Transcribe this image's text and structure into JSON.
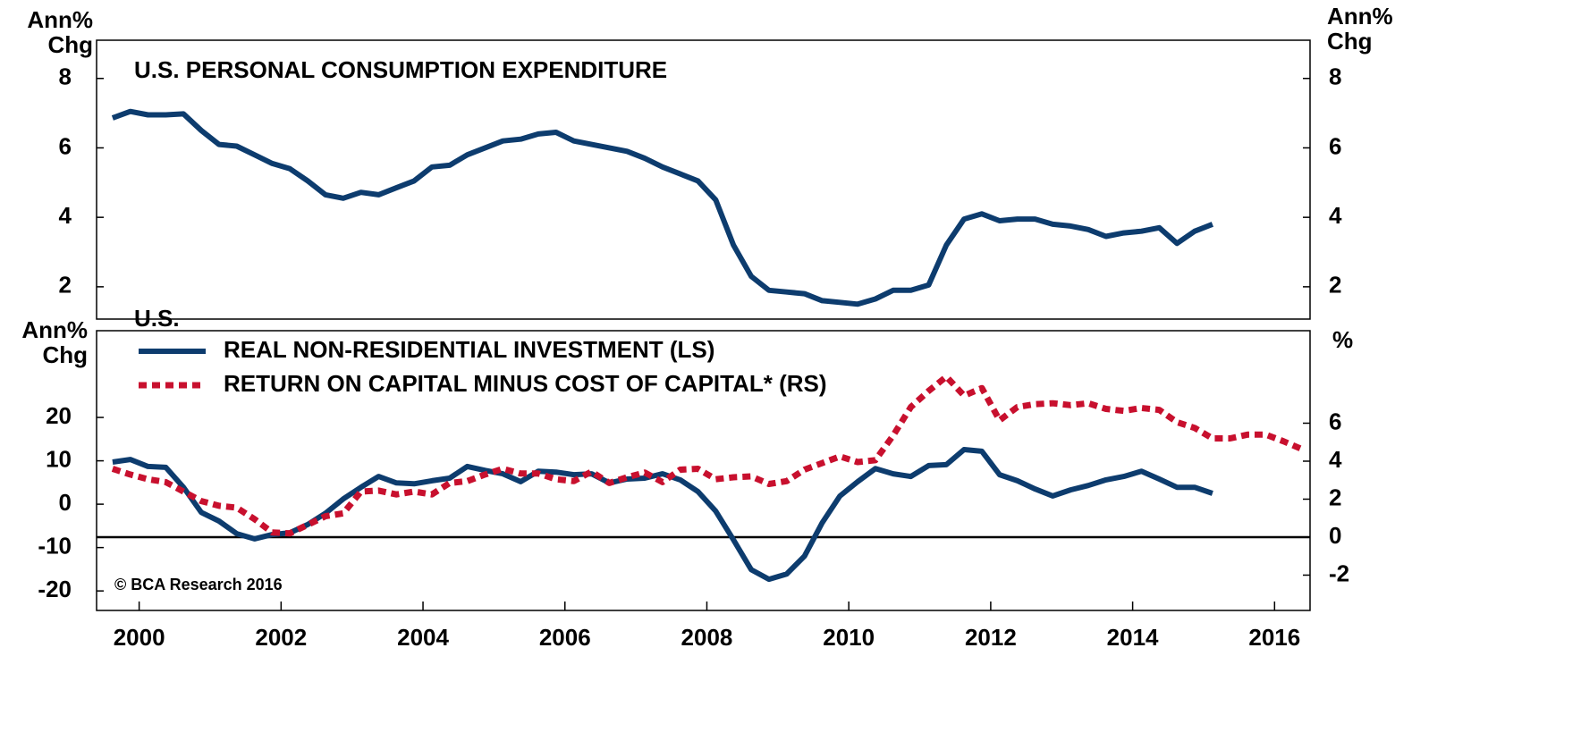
{
  "chart_data": [
    {
      "type": "line",
      "title": "U.S. PERSONAL CONSUMPTION EXPENDITURE",
      "ylabel": "Ann% Chg",
      "y2label": "Ann% Chg",
      "xlim": [
        1999.4,
        2016.5
      ],
      "ylim": [
        1.07,
        9.1
      ],
      "yticks": [
        2,
        4,
        6,
        8
      ],
      "y2lim": [
        1.07,
        9.1
      ],
      "y2ticks": [
        2,
        4,
        6,
        8
      ],
      "series": [
        {
          "name": "U.S. PERSONAL CONSUMPTION EXPENDITURE",
          "color": "#0d3c6e",
          "style": "solid",
          "x": [
            1999.625,
            1999.875,
            2000.125,
            2000.375,
            2000.625,
            2000.875,
            2001.125,
            2001.375,
            2001.625,
            2001.875,
            2002.125,
            2002.375,
            2002.625,
            2002.875,
            2003.125,
            2003.375,
            2003.625,
            2003.875,
            2004.125,
            2004.375,
            2004.625,
            2004.875,
            2005.125,
            2005.375,
            2005.625,
            2005.875,
            2006.125,
            2006.375,
            2006.625,
            2006.875,
            2007.125,
            2007.375,
            2007.625,
            2007.875,
            2008.125,
            2008.375,
            2008.625,
            2008.875,
            2009.125,
            2009.375,
            2009.625,
            2009.875,
            2010.125,
            2010.375,
            2010.625,
            2010.875,
            2011.125,
            2011.375,
            2011.625,
            2011.875,
            2012.125,
            2012.375,
            2012.625,
            2012.875,
            2013.125,
            2013.375,
            2013.625,
            2013.875,
            2014.125,
            2014.375,
            2014.625,
            2014.875,
            2015.125
          ],
          "values": [
            6.86,
            7.05,
            6.95,
            6.95,
            6.98,
            6.5,
            6.1,
            6.05,
            5.8,
            5.55,
            5.4,
            5.05,
            4.65,
            4.55,
            4.72,
            4.65,
            4.85,
            5.05,
            5.45,
            5.5,
            5.8,
            6.0,
            6.2,
            6.25,
            6.4,
            6.45,
            6.2,
            6.1,
            6.0,
            5.9,
            5.7,
            5.45,
            5.25,
            5.05,
            4.5,
            3.2,
            2.3,
            1.9,
            1.85,
            1.8,
            1.6,
            1.55,
            1.5,
            1.65,
            1.9,
            1.9,
            2.05,
            3.2,
            3.95,
            4.1,
            3.9,
            3.95,
            3.95,
            3.8,
            3.75,
            3.65,
            3.45,
            3.55,
            3.6,
            3.7,
            3.25,
            3.6,
            3.8
          ]
        }
      ]
    },
    {
      "type": "line",
      "title": "U.S.",
      "ylabel": "Ann% Chg",
      "y2label": "%",
      "annotation": "© BCA Research 2016",
      "xlim": [
        1999.4,
        2016.5
      ],
      "xticks": [
        2000,
        2002,
        2004,
        2006,
        2008,
        2010,
        2012,
        2014,
        2016
      ],
      "ylim": [
        -24.5,
        40
      ],
      "yticks": [
        -20,
        -10,
        0,
        10,
        20
      ],
      "y2lim": [
        -3.86,
        10.87
      ],
      "y2ticks": [
        -2,
        0,
        2,
        4,
        6
      ],
      "reference_line": {
        "value": 0,
        "axis": "y2",
        "color": "#000000"
      },
      "series": [
        {
          "name": "REAL NON-RESIDENTIAL INVESTMENT (LS)",
          "color": "#0d3c6e",
          "style": "solid",
          "x": [
            1999.625,
            1999.875,
            2000.125,
            2000.375,
            2000.625,
            2000.875,
            2001.125,
            2001.375,
            2001.625,
            2001.875,
            2002.125,
            2002.375,
            2002.625,
            2002.875,
            2003.125,
            2003.375,
            2003.625,
            2003.875,
            2004.125,
            2004.375,
            2004.625,
            2004.875,
            2005.125,
            2005.375,
            2005.625,
            2005.875,
            2006.125,
            2006.375,
            2006.625,
            2006.875,
            2007.125,
            2007.375,
            2007.625,
            2007.875,
            2008.125,
            2008.375,
            2008.625,
            2008.875,
            2009.125,
            2009.375,
            2009.625,
            2009.875,
            2010.125,
            2010.375,
            2010.625,
            2010.875,
            2011.125,
            2011.375,
            2011.625,
            2011.875,
            2012.125,
            2012.375,
            2012.625,
            2012.875,
            2013.125,
            2013.375,
            2013.625,
            2013.875,
            2014.125,
            2014.375,
            2014.625,
            2014.875,
            2015.125
          ],
          "values": [
            9.7,
            10.3,
            8.7,
            8.5,
            3.9,
            -1.9,
            -3.9,
            -6.8,
            -8.0,
            -7.0,
            -6.6,
            -4.7,
            -2.1,
            1.2,
            3.9,
            6.4,
            4.9,
            4.7,
            5.4,
            6.0,
            8.7,
            7.8,
            7.0,
            5.2,
            7.6,
            7.4,
            6.8,
            7.0,
            4.9,
            5.8,
            6.0,
            7.0,
            5.6,
            2.9,
            -1.6,
            -8.2,
            -15.1,
            -17.3,
            -16.1,
            -12.0,
            -4.3,
            1.9,
            5.2,
            8.2,
            7.0,
            6.4,
            8.9,
            9.1,
            12.6,
            12.2,
            6.8,
            5.4,
            3.5,
            1.9,
            3.3,
            4.3,
            5.6,
            6.4,
            7.6,
            5.8,
            3.9,
            3.9,
            2.5
          ]
        },
        {
          "name": "RETURN ON CAPITAL MINUS COST OF CAPITAL* (RS)",
          "color": "#c8102e",
          "style": "dotted",
          "axis": "y2",
          "x": [
            1999.625,
            1999.875,
            2000.125,
            2000.375,
            2000.625,
            2000.875,
            2001.125,
            2001.375,
            2001.625,
            2001.875,
            2002.125,
            2002.375,
            2002.625,
            2002.875,
            2003.125,
            2003.375,
            2003.625,
            2003.875,
            2004.125,
            2004.375,
            2004.625,
            2004.875,
            2005.125,
            2005.375,
            2005.625,
            2005.875,
            2006.125,
            2006.375,
            2006.625,
            2006.875,
            2007.125,
            2007.375,
            2007.625,
            2007.875,
            2008.125,
            2008.375,
            2008.625,
            2008.875,
            2009.125,
            2009.375,
            2009.625,
            2009.875,
            2010.125,
            2010.375,
            2010.625,
            2010.875,
            2011.125,
            2011.375,
            2011.625,
            2011.875,
            2012.125,
            2012.375,
            2012.625,
            2012.875,
            2013.125,
            2013.375,
            2013.625,
            2013.875,
            2014.125,
            2014.375,
            2014.625,
            2014.875,
            2015.125,
            2015.375,
            2015.625,
            2015.875,
            2016.125,
            2016.375
          ],
          "values": [
            3.6,
            3.3,
            3.05,
            2.9,
            2.4,
            1.9,
            1.65,
            1.55,
            0.95,
            0.25,
            0.2,
            0.65,
            1.1,
            1.25,
            2.4,
            2.45,
            2.25,
            2.4,
            2.25,
            2.85,
            2.95,
            3.3,
            3.6,
            3.35,
            3.35,
            3.05,
            2.95,
            3.45,
            2.85,
            3.15,
            3.4,
            2.9,
            3.55,
            3.6,
            3.05,
            3.15,
            3.2,
            2.8,
            2.95,
            3.55,
            3.9,
            4.25,
            3.95,
            4.05,
            5.35,
            6.85,
            7.7,
            8.45,
            7.45,
            7.85,
            6.15,
            6.85,
            7.0,
            7.05,
            6.95,
            7.05,
            6.75,
            6.65,
            6.8,
            6.7,
            6.05,
            5.75,
            5.2,
            5.2,
            5.4,
            5.4,
            5.05,
            4.65
          ]
        }
      ]
    }
  ]
}
